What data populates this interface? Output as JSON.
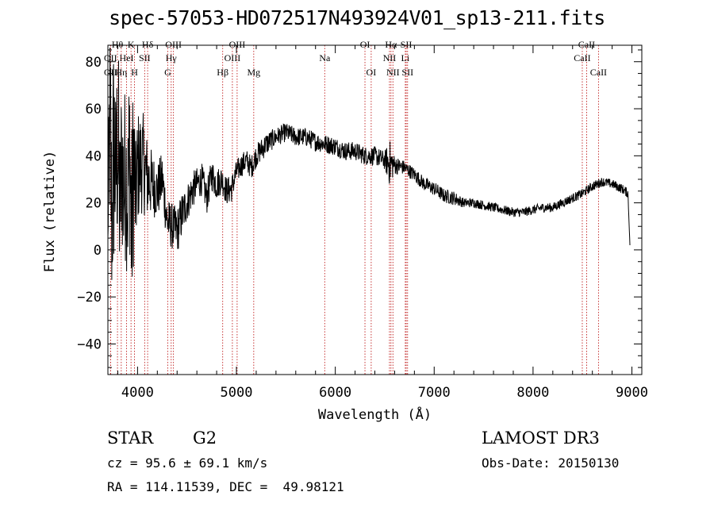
{
  "title": "spec-57053-HD072517N493924V01_sp13-211.fits",
  "info": {
    "class": "STAR",
    "subclass": "G2",
    "survey": "LAMOST DR3",
    "cz": "cz = 95.6 ± 69.1 km/s",
    "obs_date": "Obs-Date: 20150130",
    "radec": "RA = 114.11539, DEC =  49.98121"
  },
  "chart_data": {
    "type": "line",
    "xlabel": "Wavelength (Å)",
    "ylabel": "Flux (relative)",
    "xlim": [
      3700,
      9100
    ],
    "ylim": [
      -53,
      87
    ],
    "xticks": [
      4000,
      5000,
      6000,
      7000,
      8000,
      9000
    ],
    "yticks": [
      -40,
      -20,
      0,
      20,
      40,
      60,
      80
    ],
    "series": [
      {
        "x": [
          3700,
          3720,
          3740,
          3760,
          3780,
          3800,
          3820,
          3840,
          3860,
          3880,
          3900,
          3920,
          3940,
          3960,
          3980,
          4000,
          4050,
          4100,
          4150,
          4200,
          4250,
          4300,
          4350,
          4400,
          4450,
          4500,
          4550,
          4600,
          4650,
          4700,
          4750,
          4800,
          4850,
          4900,
          4950,
          5000,
          5050,
          5100,
          5150,
          5200,
          5300,
          5400,
          5500,
          5600,
          5700,
          5800,
          5900,
          6000,
          6100,
          6200,
          6300,
          6400,
          6500,
          6550,
          6600,
          6700,
          6800,
          6900,
          7000,
          7100,
          7200,
          7300,
          7400,
          7500,
          7600,
          7700,
          7800,
          7900,
          8000,
          8100,
          8200,
          8300,
          8400,
          8500,
          8600,
          8700,
          8800,
          8900,
          8960,
          8980
        ],
        "y": [
          5,
          60,
          10,
          45,
          30,
          50,
          15,
          40,
          25,
          35,
          20,
          45,
          5,
          40,
          20,
          35,
          38,
          30,
          28,
          25,
          30,
          12,
          10,
          8,
          15,
          20,
          25,
          28,
          30,
          22,
          32,
          28,
          30,
          25,
          26,
          33,
          36,
          38,
          35,
          40,
          45,
          48,
          50,
          48,
          48,
          46,
          45,
          44,
          42,
          42,
          40,
          40,
          38,
          37,
          36,
          35,
          32,
          28,
          26,
          23,
          22,
          20,
          20,
          19,
          18,
          17,
          16,
          16,
          17,
          18,
          18,
          20,
          22,
          24,
          27,
          29,
          28,
          26,
          24,
          2
        ],
        "noise": [
          0,
          60,
          40,
          60,
          35,
          55,
          35,
          40,
          40,
          40,
          35,
          45,
          45,
          45,
          25,
          25,
          22,
          18,
          14,
          12,
          12,
          10,
          10,
          10,
          10,
          8,
          8,
          7,
          7,
          7,
          7,
          7,
          6,
          6,
          6,
          5,
          5,
          5,
          5,
          5,
          5,
          4,
          4,
          4,
          4,
          4,
          4,
          4,
          4,
          4,
          4,
          4,
          4,
          10,
          4,
          3,
          3,
          3,
          3,
          3,
          3,
          2,
          2,
          2,
          2,
          2,
          2,
          2,
          2,
          2,
          2,
          2,
          2,
          2,
          2,
          2,
          2,
          2,
          2,
          0
        ]
      }
    ],
    "lines": [
      {
        "label": "Hθ",
        "wl": 3797,
        "row": 0
      },
      {
        "label": "K",
        "wl": 3934,
        "row": 0
      },
      {
        "label": "Hδ",
        "wl": 4102,
        "row": 0
      },
      {
        "label": "OIII",
        "wl": 4363,
        "row": 0
      },
      {
        "label": "OIII",
        "wl": 5007,
        "row": 0
      },
      {
        "label": "OI",
        "wl": 6300,
        "row": 0
      },
      {
        "label": "Hα",
        "wl": 6563,
        "row": 0
      },
      {
        "label": "SII",
        "wl": 6717,
        "row": 0
      },
      {
        "label": "CaII",
        "wl": 8542,
        "row": 0
      },
      {
        "label": "OII",
        "wl": 3727,
        "row": 1
      },
      {
        "label": "HeI",
        "wl": 3889,
        "row": 1
      },
      {
        "label": "SII",
        "wl": 4072,
        "row": 1
      },
      {
        "label": "Hγ",
        "wl": 4340,
        "row": 1
      },
      {
        "label": "OIII",
        "wl": 4959,
        "row": 1
      },
      {
        "label": "Na",
        "wl": 5893,
        "row": 1
      },
      {
        "label": "NII",
        "wl": 6548,
        "row": 1
      },
      {
        "label": "Li",
        "wl": 6708,
        "row": 1
      },
      {
        "label": "CaII",
        "wl": 8498,
        "row": 1
      },
      {
        "label": "OII",
        "wl": 3727,
        "row": 2
      },
      {
        "label": "Hη",
        "wl": 3835,
        "row": 2
      },
      {
        "label": "H",
        "wl": 3969,
        "row": 2
      },
      {
        "label": "G",
        "wl": 4305,
        "row": 2
      },
      {
        "label": "Hβ",
        "wl": 4861,
        "row": 2
      },
      {
        "label": "Mg",
        "wl": 5175,
        "row": 2
      },
      {
        "label": "OI",
        "wl": 6363,
        "row": 2
      },
      {
        "label": "NII",
        "wl": 6583,
        "row": 2
      },
      {
        "label": "SII",
        "wl": 6731,
        "row": 2
      },
      {
        "label": "CaII",
        "wl": 8662,
        "row": 2
      }
    ]
  }
}
